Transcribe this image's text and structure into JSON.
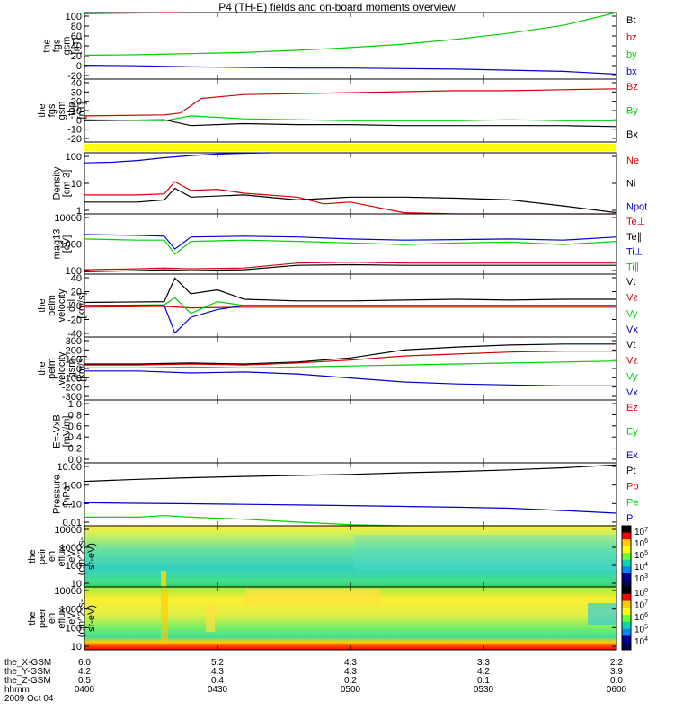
{
  "title": "P4 (TH-E) fields and on-board moments overview",
  "colors": {
    "black": "#000000",
    "red": "#d40000",
    "green": "#00d000",
    "blue": "#0000cc",
    "yellow": "#ffff00"
  },
  "footer": {
    "rows": [
      {
        "label": "the_X-GSM",
        "values": [
          "6.0",
          "5.2",
          "4.3",
          "3.3",
          "2.2"
        ]
      },
      {
        "label": "the_Y-GSM",
        "values": [
          "4.2",
          "4.3",
          "4.3",
          "4.2",
          "3.9"
        ]
      },
      {
        "label": "the_Z-GSM",
        "values": [
          "0.5",
          "0.4",
          "0.2",
          "0.1",
          "0.0"
        ]
      },
      {
        "label": "hhmm",
        "values": [
          "0400",
          "0430",
          "0500",
          "0530",
          "0600"
        ]
      }
    ],
    "date": "2009 Oct 04"
  },
  "chart_data": [
    {
      "type": "line",
      "ylabel": [
        "the",
        "fgs",
        "gsm",
        "[nT]"
      ],
      "yticks": [
        "100",
        "80",
        "60",
        "40",
        "20",
        "0",
        "-20"
      ],
      "ylim": [
        -20,
        100
      ],
      "legend": [
        {
          "text": "Bt",
          "color": "black"
        },
        {
          "text": "bz",
          "color": "red"
        },
        {
          "text": "by",
          "color": "green"
        },
        {
          "text": "bx",
          "color": "blue"
        }
      ],
      "series": [
        {
          "name": "bz",
          "color": "red",
          "x": [
            0,
            0.18
          ],
          "y": [
            98,
            100
          ]
        },
        {
          "name": "by",
          "color": "green",
          "x": [
            0,
            0.1,
            0.2,
            0.3,
            0.4,
            0.5,
            0.6,
            0.7,
            0.8,
            0.9,
            1
          ],
          "y": [
            23,
            24,
            26,
            28,
            32,
            37,
            43,
            52,
            63,
            77,
            100
          ]
        },
        {
          "name": "bx",
          "color": "blue",
          "x": [
            0,
            0.1,
            0.2,
            0.3,
            0.4,
            0.5,
            0.6,
            0.7,
            0.8,
            0.9,
            1
          ],
          "y": [
            5,
            4,
            2,
            1,
            0,
            0,
            -1,
            -2,
            -4,
            -6,
            -11
          ]
        }
      ]
    },
    {
      "type": "line",
      "ylabel": [
        "the",
        "fgs",
        "gsm",
        "-tbp",
        "[nT]"
      ],
      "yticks": [
        "40",
        "30",
        "20",
        "10",
        "0",
        "-10",
        "-20"
      ],
      "ylim": [
        -25,
        40
      ],
      "legend": [
        {
          "text": "Bz",
          "color": "red"
        },
        {
          "text": "By",
          "color": "green"
        },
        {
          "text": "Bx",
          "color": "black"
        }
      ],
      "series": [
        {
          "name": "Bz",
          "color": "red",
          "x": [
            0,
            0.15,
            0.18,
            0.22,
            0.3,
            0.4,
            0.5,
            0.6,
            0.7,
            0.8,
            0.9,
            1
          ],
          "y": [
            2,
            3,
            5,
            20,
            24,
            25,
            26,
            27,
            28,
            28,
            29,
            30
          ]
        },
        {
          "name": "By",
          "color": "green",
          "x": [
            0,
            0.15,
            0.2,
            0.3,
            0.4,
            0.5,
            0.6,
            0.7,
            0.8,
            0.9,
            1
          ],
          "y": [
            -2,
            -3,
            2,
            -1,
            -2,
            -3,
            -3,
            -3,
            -2,
            -3,
            -3
          ]
        },
        {
          "name": "Bx",
          "color": "black",
          "x": [
            0,
            0.15,
            0.2,
            0.3,
            0.4,
            0.5,
            0.6,
            0.7,
            0.8,
            0.9,
            1
          ],
          "y": [
            -3,
            -2,
            -8,
            -6,
            -7,
            -7,
            -8,
            -8,
            -8,
            -8,
            -9
          ]
        }
      ]
    },
    {
      "type": "line",
      "ylabel": [
        "Density",
        "[cm-3]"
      ],
      "yticks": [
        "100",
        "10",
        "1"
      ],
      "log": true,
      "ylim": [
        0.35,
        200
      ],
      "legend": [
        {
          "text": "Ne",
          "color": "red"
        },
        {
          "text": "Ni",
          "color": "black"
        },
        {
          "text": "Npot",
          "color": "blue"
        }
      ],
      "series": [
        {
          "name": "Npot",
          "color": "blue",
          "x": [
            0,
            0.05,
            0.1,
            0.15,
            0.2,
            0.25,
            0.3,
            0.35
          ],
          "y": [
            70,
            75,
            90,
            120,
            150,
            175,
            190,
            200
          ]
        },
        {
          "name": "Ne",
          "color": "red",
          "x": [
            0,
            0.1,
            0.15,
            0.17,
            0.2,
            0.25,
            0.3,
            0.4,
            0.45,
            0.5,
            0.6,
            0.7,
            0.8,
            0.9,
            1
          ],
          "y": [
            2.5,
            2.5,
            2.8,
            10,
            4,
            4.5,
            3,
            2,
            1,
            1.2,
            0.4,
            0.35,
            0.35,
            0.35,
            0.35
          ]
        },
        {
          "name": "Ni",
          "color": "black",
          "x": [
            0,
            0.1,
            0.15,
            0.17,
            0.2,
            0.3,
            0.4,
            0.5,
            0.6,
            0.7,
            0.8,
            0.9,
            1
          ],
          "y": [
            1.2,
            1.2,
            1.5,
            5,
            2,
            2.5,
            1.5,
            2,
            2,
            1.8,
            1.5,
            0.8,
            0.4
          ]
        }
      ]
    },
    {
      "type": "line",
      "ylabel": [
        "mag13",
        "[eV]"
      ],
      "yticks": [
        "10000",
        "1000",
        "100"
      ],
      "log": true,
      "ylim": [
        40,
        10000
      ],
      "legend": [
        {
          "text": "Te⊥",
          "color": "red"
        },
        {
          "text": "Te∥",
          "color": "black"
        },
        {
          "text": "Ti⊥",
          "color": "blue"
        },
        {
          "text": "Ti∥",
          "color": "green"
        }
      ],
      "series": [
        {
          "name": "Ti⊥",
          "color": "blue",
          "x": [
            0,
            0.1,
            0.15,
            0.17,
            0.2,
            0.3,
            0.4,
            0.5,
            0.6,
            0.7,
            0.8,
            0.9,
            1
          ],
          "y": [
            1500,
            1400,
            1300,
            400,
            1200,
            1300,
            1200,
            1000,
            900,
            950,
            1000,
            900,
            1200
          ]
        },
        {
          "name": "Ti∥",
          "color": "green",
          "x": [
            0,
            0.1,
            0.15,
            0.17,
            0.2,
            0.3,
            0.4,
            0.5,
            0.6,
            0.7,
            0.8,
            0.9,
            1
          ],
          "y": [
            1000,
            900,
            900,
            250,
            800,
            900,
            800,
            700,
            600,
            700,
            750,
            600,
            800
          ]
        },
        {
          "name": "Te⊥",
          "color": "red",
          "x": [
            0,
            0.1,
            0.15,
            0.2,
            0.3,
            0.4,
            0.5,
            0.6,
            0.7,
            0.8,
            0.9,
            1
          ],
          "y": [
            60,
            65,
            70,
            65,
            70,
            110,
            120,
            110,
            110,
            110,
            110,
            110
          ]
        },
        {
          "name": "Te∥",
          "color": "black",
          "x": [
            0,
            0.1,
            0.15,
            0.2,
            0.3,
            0.4,
            0.5,
            0.6,
            0.7,
            0.8,
            0.9,
            1
          ],
          "y": [
            50,
            55,
            60,
            55,
            60,
            90,
            95,
            90,
            90,
            90,
            90,
            90
          ]
        }
      ]
    },
    {
      "type": "line",
      "ylabel": [
        "the",
        "peim",
        "velocity",
        "dsl",
        "[km/s]"
      ],
      "yticks": [
        "40",
        "20",
        "0",
        "-20",
        "-40"
      ],
      "ylim": [
        -40,
        40
      ],
      "legend": [
        {
          "text": "Vt",
          "color": "black"
        },
        {
          "text": "Vz",
          "color": "red"
        },
        {
          "text": "Vy",
          "color": "green"
        },
        {
          "text": "Vx",
          "color": "blue"
        }
      ],
      "series": [
        {
          "name": "Vt",
          "color": "black",
          "x": [
            0,
            0.15,
            0.17,
            0.2,
            0.25,
            0.3,
            0.4,
            0.5,
            0.6,
            0.7,
            0.8,
            0.9,
            1
          ],
          "y": [
            4,
            5,
            35,
            15,
            20,
            8,
            6,
            6,
            7,
            8,
            7,
            8,
            8
          ]
        },
        {
          "name": "Vz",
          "color": "red",
          "x": [
            0,
            0.15,
            0.2,
            0.3,
            0.4,
            0.5,
            0.6,
            0.7,
            0.8,
            0.9,
            1
          ],
          "y": [
            -2,
            -1,
            -3,
            -2,
            -2,
            -2,
            -2,
            -2,
            -2,
            -2,
            -2
          ]
        },
        {
          "name": "Vy",
          "color": "green",
          "x": [
            0,
            0.15,
            0.17,
            0.2,
            0.25,
            0.3,
            0.4,
            0.5,
            0.6,
            0.7,
            0.8,
            0.9,
            1
          ],
          "y": [
            0,
            1,
            10,
            -10,
            5,
            0,
            0,
            0,
            0,
            0,
            0,
            0,
            0
          ]
        },
        {
          "name": "Vx",
          "color": "blue",
          "x": [
            0,
            0.15,
            0.17,
            0.2,
            0.25,
            0.3,
            0.4,
            0.5,
            0.6,
            0.7,
            0.8,
            0.9,
            1
          ],
          "y": [
            0,
            0,
            -35,
            -15,
            -5,
            0,
            0,
            0,
            0,
            0,
            0,
            0,
            0
          ]
        }
      ]
    },
    {
      "type": "line",
      "ylabel": [
        "the",
        "peim",
        "velocity",
        "gsm",
        "[km/s]"
      ],
      "yticks": [
        "300",
        "200",
        "100",
        "0",
        "-100",
        "-200",
        "-300"
      ],
      "ylim": [
        -300,
        330
      ],
      "legend": [
        {
          "text": "Vt",
          "color": "black"
        },
        {
          "text": "Vz",
          "color": "red"
        },
        {
          "text": "Vy",
          "color": "green"
        },
        {
          "text": "Vx",
          "color": "blue"
        }
      ],
      "series": [
        {
          "name": "Vt",
          "color": "black",
          "x": [
            0,
            0.1,
            0.2,
            0.3,
            0.4,
            0.5,
            0.6,
            0.7,
            0.8,
            0.9,
            1
          ],
          "y": [
            60,
            60,
            70,
            60,
            80,
            120,
            200,
            230,
            250,
            260,
            260
          ]
        },
        {
          "name": "Vz",
          "color": "red",
          "x": [
            0,
            0.1,
            0.2,
            0.3,
            0.4,
            0.5,
            0.6,
            0.7,
            0.8,
            0.9,
            1
          ],
          "y": [
            50,
            50,
            60,
            50,
            70,
            100,
            140,
            160,
            180,
            190,
            190
          ]
        },
        {
          "name": "Vy",
          "color": "green",
          "x": [
            0,
            0.1,
            0.2,
            0.3,
            0.4,
            0.5,
            0.6,
            0.7,
            0.8,
            0.9,
            1
          ],
          "y": [
            20,
            20,
            30,
            20,
            30,
            40,
            50,
            60,
            70,
            80,
            90
          ]
        },
        {
          "name": "Vx",
          "color": "blue",
          "x": [
            0,
            0.1,
            0.2,
            0.3,
            0.4,
            0.5,
            0.6,
            0.7,
            0.8,
            0.9,
            1
          ],
          "y": [
            -10,
            -10,
            -30,
            -20,
            -40,
            -80,
            -120,
            -140,
            -150,
            -160,
            -160
          ]
        }
      ]
    },
    {
      "type": "line",
      "ylabel": [
        "E=-VxB",
        "[mV/m]"
      ],
      "yticks": [
        "1.0",
        "0.8",
        "0.6",
        "0.4",
        "0.2",
        "0.0"
      ],
      "ylim": [
        0,
        1
      ],
      "legend": [
        {
          "text": "Ez",
          "color": "red"
        },
        {
          "text": "Ey",
          "color": "green"
        },
        {
          "text": "Ex",
          "color": "blue"
        }
      ],
      "series": []
    },
    {
      "type": "line",
      "ylabel": [
        "Pressure",
        "[nPa]"
      ],
      "yticks": [
        "10.00",
        "1.00",
        "0.10",
        "0.01"
      ],
      "log": true,
      "ylim": [
        0.006,
        40
      ],
      "legend": [
        {
          "text": "Pt",
          "color": "black"
        },
        {
          "text": "Pb",
          "color": "red"
        },
        {
          "text": "Pe",
          "color": "green"
        },
        {
          "text": "Pi",
          "color": "blue"
        }
      ],
      "series": [
        {
          "name": "Pt",
          "color": "black",
          "x": [
            0,
            0.1,
            0.2,
            0.3,
            0.4,
            0.5,
            0.6,
            0.7,
            0.8,
            0.9,
            1
          ],
          "y": [
            3,
            4,
            5,
            6,
            7,
            8,
            10,
            12,
            15,
            20,
            30
          ]
        },
        {
          "name": "Pi",
          "color": "blue",
          "x": [
            0,
            0.1,
            0.2,
            0.3,
            0.4,
            0.5,
            0.6,
            0.7,
            0.8,
            0.9,
            1
          ],
          "y": [
            0.15,
            0.14,
            0.13,
            0.12,
            0.11,
            0.1,
            0.09,
            0.08,
            0.07,
            0.05,
            0.035
          ]
        },
        {
          "name": "Pe",
          "color": "green",
          "x": [
            0,
            0.1,
            0.15,
            0.2,
            0.3,
            0.4,
            0.5,
            0.6,
            0.7,
            0.8,
            0.9,
            1
          ],
          "y": [
            0.02,
            0.02,
            0.025,
            0.02,
            0.015,
            0.01,
            0.007,
            0.006,
            0.006,
            0.006,
            0.006,
            0.006
          ]
        }
      ]
    },
    {
      "type": "heatmap",
      "ylabel": [
        "the",
        "peir",
        "en",
        "eflux",
        "eV",
        "(cm^2-s-",
        "sr-eV)"
      ],
      "yticks": [
        "10000",
        "1000",
        "100",
        "10"
      ],
      "colorbar": [
        "10^7",
        "10^6",
        "10^5",
        "10^4",
        "10^3"
      ]
    },
    {
      "type": "heatmap",
      "ylabel": [
        "the",
        "peer",
        "en",
        "eflux",
        "eV",
        "(cm^2-s-",
        "sr-eV)"
      ],
      "yticks": [
        "10000",
        "1000",
        "100",
        "10"
      ],
      "colorbar": [
        "10^8",
        "10^7",
        "10^6",
        "10^5",
        "10^4"
      ]
    }
  ]
}
